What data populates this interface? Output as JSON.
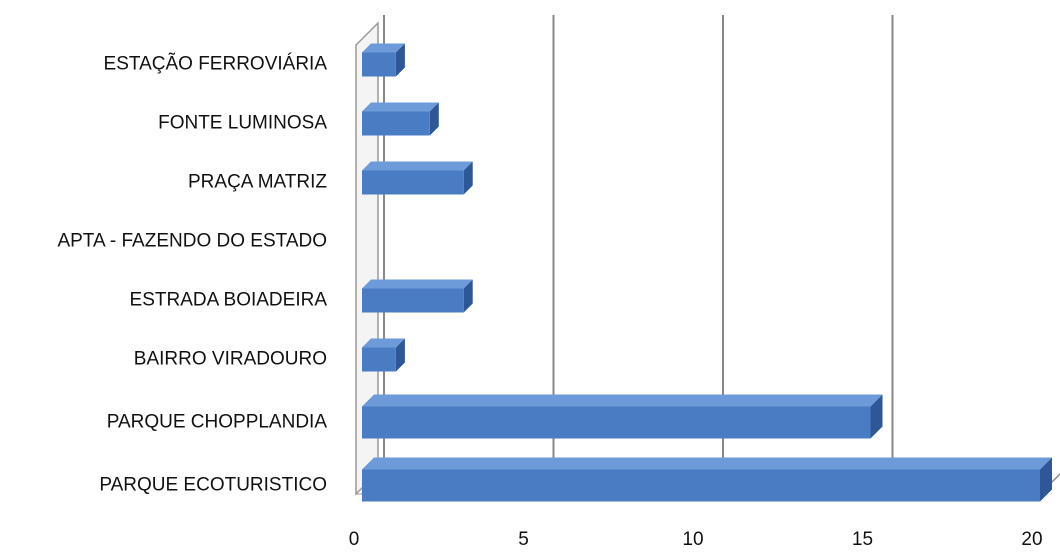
{
  "chart_data": {
    "type": "bar",
    "orientation": "horizontal",
    "categories": [
      "ESTAÇÃO FERROVIÁRIA",
      "FONTE LUMINOSA",
      "PRAÇA MATRIZ",
      "APTA - FAZENDO DO ESTADO",
      "ESTRADA BOIADEIRA",
      "BAIRRO VIRADOURO",
      "PARQUE CHOPPLANDIA",
      "PARQUE ECOTURISTICO"
    ],
    "values": [
      1,
      2,
      3,
      0,
      3,
      1,
      15,
      20
    ],
    "color": "#4a7cc4",
    "xlim": [
      0,
      20
    ],
    "xticks": [
      0,
      5,
      10,
      15,
      20
    ],
    "grid": true
  }
}
